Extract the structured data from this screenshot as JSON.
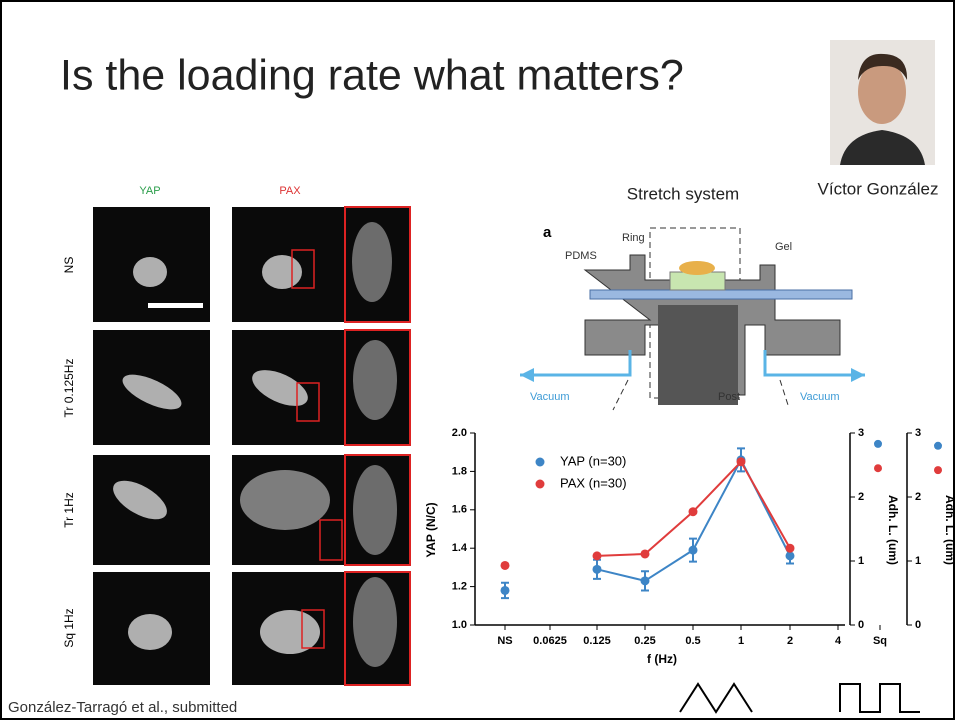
{
  "slide": {
    "title": "Is the loading rate what matters?",
    "person": "Víctor González",
    "system_label": "Stretch system",
    "citation": "González-Tarragó et al., submitted",
    "micro": {
      "columns": [
        "YAP",
        "PAX"
      ],
      "rows": [
        "NS",
        "Tr 0.125Hz",
        "Tr 1Hz",
        "Sq 1Hz"
      ]
    },
    "diagram": {
      "panel": "a",
      "labels": [
        "PDMS",
        "Ring",
        "Gel",
        "Vacuum",
        "Post",
        "Vacuum"
      ]
    }
  },
  "chart_data": {
    "type": "line",
    "x_label": "f (Hz)",
    "y_label": "YAP (N/C)",
    "y2_label": "Adh. L. (um)",
    "categories": [
      "NS",
      "0.0625",
      "0.125",
      "0.25",
      "0.5",
      "1",
      "2",
      "4",
      "Sq"
    ],
    "ylim": [
      1.0,
      2.0
    ],
    "yticks": [
      {
        "value": 1.0,
        "label": "1.0"
      },
      1.2,
      1.4,
      1.6,
      1.8,
      {
        "value": 2.0,
        "label": "2.0"
      }
    ],
    "y2lim": [
      0,
      3
    ],
    "y2ticks": [
      0,
      1,
      2,
      3
    ],
    "series": [
      {
        "name": "YAP (n=30)",
        "color": "#3d85c6",
        "values": [
          1.18,
          null,
          1.29,
          1.23,
          1.39,
          1.86,
          1.36,
          null,
          null
        ],
        "errors": [
          0.04,
          null,
          0.05,
          0.05,
          0.06,
          0.06,
          0.04,
          null,
          null
        ],
        "y2_values": [
          2.83,
          2.8
        ]
      },
      {
        "name": "PAX (n=30)",
        "color": "#e03c3c",
        "values": [
          1.31,
          null,
          1.36,
          1.37,
          1.59,
          1.85,
          1.4,
          null,
          null
        ],
        "y2_values": [
          2.45,
          2.42
        ]
      }
    ]
  }
}
